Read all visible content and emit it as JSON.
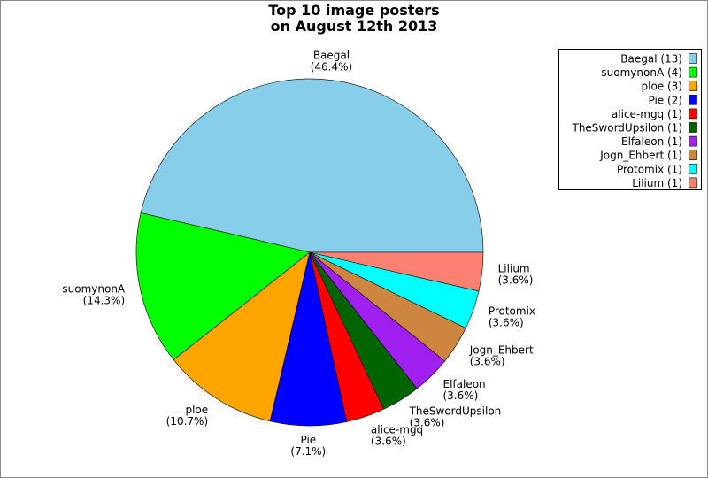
{
  "chart_data": {
    "type": "pie",
    "title": [
      "Top 10 image posters",
      "on August 12th 2013"
    ],
    "categories": [
      "Baegal",
      "suomynonA",
      "ploe",
      "Pie",
      "alice-mgq",
      "TheSwordUpsilon",
      "Elfaleon",
      "Jogn_Ehbert",
      "Protomix",
      "Lilium"
    ],
    "values": [
      46.4,
      14.3,
      10.7,
      7.1,
      3.6,
      3.6,
      3.6,
      3.6,
      3.6,
      3.6
    ],
    "value_labels": [
      "(46.4%)",
      "(14.3%)",
      "(10.7%)",
      "(7.1%)",
      "(3.6%)",
      "(3.6%)",
      "(3.6%)",
      "(3.6%)",
      "(3.6%)",
      "(3.6%)"
    ],
    "legend_labels": [
      "Baegal (13)",
      "suomynonA (4)",
      "ploe (3)",
      "Pie (2)",
      "alice-mgq (1)",
      "TheSwordUpsilon (1)",
      "Elfaleon (1)",
      "Jogn_Ehbert (1)",
      "Protomix (1)",
      "Lilium (1)"
    ],
    "colors": [
      "#87ceeb",
      "#00ff00",
      "#ffa500",
      "#0000ff",
      "#ff0000",
      "#006400",
      "#a020f0",
      "#cd853f",
      "#00ffff",
      "#fa8072"
    ],
    "legend": "upper right"
  }
}
